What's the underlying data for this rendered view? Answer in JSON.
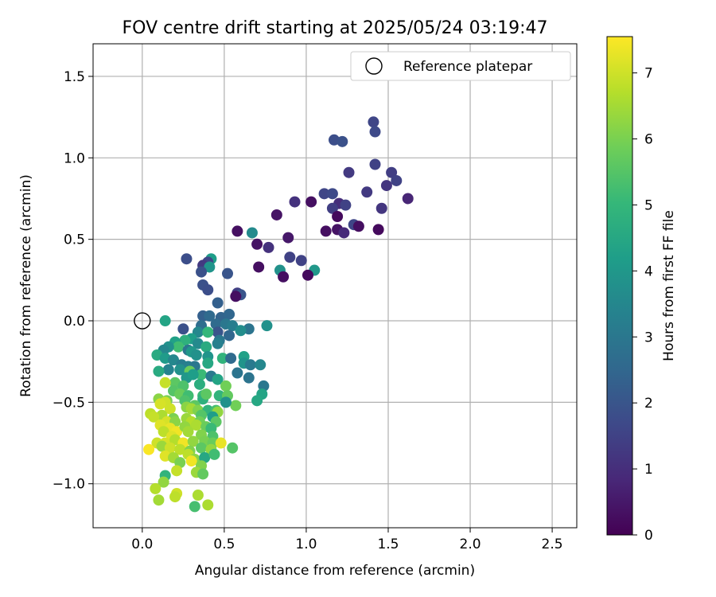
{
  "chart_data": {
    "type": "scatter",
    "title": "FOV centre drift starting at 2025/05/24 03:19:47",
    "xlabel": "Angular distance from reference (arcmin)",
    "ylabel": "Rotation from reference (arcmin)",
    "xlim": [
      -0.3,
      2.65
    ],
    "ylim": [
      -1.27,
      1.7
    ],
    "xticks": [
      0.0,
      0.5,
      1.0,
      1.5,
      2.0,
      2.5
    ],
    "xtick_labels": [
      "0.0",
      "0.5",
      "1.0",
      "1.5",
      "2.0",
      "2.5"
    ],
    "yticks": [
      -1.0,
      -0.5,
      0.0,
      0.5,
      1.0,
      1.5
    ],
    "ytick_labels": [
      "−1.0",
      "−0.5",
      "0.0",
      "0.5",
      "1.0",
      "1.5"
    ],
    "grid": true,
    "legend": {
      "position": "top-right",
      "label": "Reference platepar"
    },
    "reference_point": {
      "x": 0.0,
      "y": 0.0
    },
    "colorbar": {
      "label": "Hours from first FF file",
      "colormap": "viridis",
      "range": [
        0,
        7.55
      ],
      "ticks": [
        0,
        1,
        2,
        3,
        4,
        5,
        6,
        7
      ],
      "tick_labels": [
        "0",
        "1",
        "2",
        "3",
        "4",
        "5",
        "6",
        "7"
      ]
    },
    "points": [
      [
        1.41,
        1.22,
        1.6
      ],
      [
        1.42,
        1.16,
        1.7
      ],
      [
        1.17,
        1.11,
        1.8
      ],
      [
        1.22,
        1.1,
        1.9
      ],
      [
        1.42,
        0.96,
        1.5
      ],
      [
        1.26,
        0.91,
        1.3
      ],
      [
        1.52,
        0.91,
        1.4
      ],
      [
        1.55,
        0.86,
        1.5
      ],
      [
        1.49,
        0.83,
        1.2
      ],
      [
        1.11,
        0.78,
        1.6
      ],
      [
        1.16,
        0.78,
        1.7
      ],
      [
        1.37,
        0.79,
        1.3
      ],
      [
        1.62,
        0.75,
        0.8
      ],
      [
        0.93,
        0.73,
        1.1
      ],
      [
        1.03,
        0.73,
        0.3
      ],
      [
        1.2,
        0.72,
        1.0
      ],
      [
        1.24,
        0.71,
        1.5
      ],
      [
        1.16,
        0.69,
        1.4
      ],
      [
        1.46,
        0.69,
        1.2
      ],
      [
        0.82,
        0.65,
        0.4
      ],
      [
        1.19,
        0.64,
        0.2
      ],
      [
        1.29,
        0.59,
        1.6
      ],
      [
        1.32,
        0.58,
        0.3
      ],
      [
        1.19,
        0.56,
        0.4
      ],
      [
        1.44,
        0.56,
        0.2
      ],
      [
        0.58,
        0.55,
        0.3
      ],
      [
        1.12,
        0.55,
        0.3
      ],
      [
        1.23,
        0.54,
        0.9
      ],
      [
        0.67,
        0.54,
        3.6
      ],
      [
        0.89,
        0.51,
        0.5
      ],
      [
        0.7,
        0.47,
        0.4
      ],
      [
        0.77,
        0.45,
        1.1
      ],
      [
        0.9,
        0.39,
        1.5
      ],
      [
        0.27,
        0.38,
        1.8
      ],
      [
        0.42,
        0.38,
        4.2
      ],
      [
        0.97,
        0.37,
        1.5
      ],
      [
        0.4,
        0.36,
        1.6
      ],
      [
        0.37,
        0.34,
        1.3
      ],
      [
        0.71,
        0.33,
        0.3
      ],
      [
        1.05,
        0.31,
        4.0
      ],
      [
        0.84,
        0.31,
        3.8
      ],
      [
        0.41,
        0.33,
        3.9
      ],
      [
        0.36,
        0.3,
        1.9
      ],
      [
        0.52,
        0.29,
        2.0
      ],
      [
        1.01,
        0.28,
        0.2
      ],
      [
        0.86,
        0.27,
        0.3
      ],
      [
        0.37,
        0.22,
        1.9
      ],
      [
        0.4,
        0.19,
        1.8
      ],
      [
        0.58,
        0.17,
        1.4
      ],
      [
        0.6,
        0.16,
        2.0
      ],
      [
        0.57,
        0.15,
        0.3
      ],
      [
        0.46,
        0.11,
        2.3
      ],
      [
        0.37,
        0.03,
        2.3
      ],
      [
        0.41,
        0.03,
        2.6
      ],
      [
        0.48,
        0.02,
        2.4
      ],
      [
        0.53,
        0.04,
        2.5
      ],
      [
        0.45,
        -0.02,
        2.6
      ],
      [
        0.51,
        -0.02,
        3.0
      ],
      [
        0.55,
        -0.03,
        3.2
      ],
      [
        0.36,
        -0.03,
        2.7
      ],
      [
        0.25,
        -0.05,
        1.9
      ],
      [
        0.65,
        -0.05,
        2.9
      ],
      [
        0.76,
        -0.03,
        3.8
      ],
      [
        0.6,
        -0.06,
        3.7
      ],
      [
        0.14,
        0.0,
        4.4
      ],
      [
        0.46,
        -0.07,
        2.0
      ],
      [
        0.34,
        -0.07,
        3.5
      ],
      [
        0.53,
        -0.09,
        2.5
      ],
      [
        0.47,
        -0.12,
        3.0
      ],
      [
        0.4,
        -0.07,
        5.0
      ],
      [
        0.3,
        -0.11,
        4.2
      ],
      [
        0.26,
        -0.12,
        4.8
      ],
      [
        0.2,
        -0.13,
        4.3
      ],
      [
        0.22,
        -0.16,
        5.2
      ],
      [
        0.16,
        -0.16,
        3.8
      ],
      [
        0.13,
        -0.18,
        3.5
      ],
      [
        0.34,
        -0.14,
        3.6
      ],
      [
        0.28,
        -0.18,
        3.0
      ],
      [
        0.39,
        -0.16,
        4.6
      ],
      [
        0.46,
        -0.14,
        3.3
      ],
      [
        0.3,
        -0.19,
        4.0
      ],
      [
        0.33,
        -0.21,
        3.8
      ],
      [
        0.4,
        -0.22,
        3.9
      ],
      [
        0.09,
        -0.21,
        4.6
      ],
      [
        0.14,
        -0.23,
        4.1
      ],
      [
        0.19,
        -0.24,
        3.5
      ],
      [
        0.49,
        -0.23,
        4.9
      ],
      [
        0.54,
        -0.23,
        2.6
      ],
      [
        0.62,
        -0.22,
        4.3
      ],
      [
        0.24,
        -0.27,
        3.2
      ],
      [
        0.28,
        -0.28,
        3.3
      ],
      [
        0.32,
        -0.28,
        3.0
      ],
      [
        0.4,
        -0.26,
        4.5
      ],
      [
        0.62,
        -0.26,
        3.9
      ],
      [
        0.66,
        -0.27,
        3.1
      ],
      [
        0.72,
        -0.27,
        3.5
      ],
      [
        0.16,
        -0.3,
        3.4
      ],
      [
        0.1,
        -0.31,
        4.6
      ],
      [
        0.23,
        -0.3,
        3.8
      ],
      [
        0.29,
        -0.31,
        5.8
      ],
      [
        0.36,
        -0.33,
        5.1
      ],
      [
        0.42,
        -0.34,
        3.1
      ],
      [
        0.46,
        -0.36,
        4.4
      ],
      [
        0.58,
        -0.32,
        2.9
      ],
      [
        0.65,
        -0.35,
        2.9
      ],
      [
        0.27,
        -0.35,
        4.0
      ],
      [
        0.31,
        -0.33,
        4.2
      ],
      [
        0.2,
        -0.38,
        5.6
      ],
      [
        0.14,
        -0.38,
        6.9
      ],
      [
        0.25,
        -0.4,
        5.4
      ],
      [
        0.35,
        -0.39,
        4.7
      ],
      [
        0.51,
        -0.4,
        5.9
      ],
      [
        0.74,
        -0.4,
        3.0
      ],
      [
        0.73,
        -0.45,
        4.4
      ],
      [
        0.19,
        -0.43,
        5.5
      ],
      [
        0.23,
        -0.45,
        5.8
      ],
      [
        0.28,
        -0.46,
        5.2
      ],
      [
        0.37,
        -0.46,
        5.1
      ],
      [
        0.47,
        -0.46,
        4.9
      ],
      [
        0.52,
        -0.46,
        5.7
      ],
      [
        0.1,
        -0.48,
        6.2
      ],
      [
        0.15,
        -0.49,
        6.0
      ],
      [
        0.26,
        -0.49,
        5.4
      ],
      [
        0.37,
        -0.48,
        4.8
      ],
      [
        0.39,
        -0.45,
        5.6
      ],
      [
        0.7,
        -0.49,
        4.5
      ],
      [
        0.57,
        -0.52,
        5.9
      ],
      [
        0.14,
        -0.5,
        7.0
      ],
      [
        0.11,
        -0.51,
        7.1
      ],
      [
        0.32,
        -0.52,
        5.6
      ],
      [
        0.27,
        -0.53,
        6.2
      ],
      [
        0.3,
        -0.54,
        6.5
      ],
      [
        0.34,
        -0.55,
        6.1
      ],
      [
        0.17,
        -0.54,
        7.0
      ],
      [
        0.4,
        -0.55,
        4.9
      ],
      [
        0.45,
        -0.55,
        5.3
      ],
      [
        0.46,
        -0.56,
        6.3
      ],
      [
        0.51,
        -0.5,
        3.8
      ],
      [
        0.05,
        -0.57,
        6.8
      ],
      [
        0.12,
        -0.58,
        6.6
      ],
      [
        0.19,
        -0.6,
        6.0
      ],
      [
        0.27,
        -0.6,
        6.4
      ],
      [
        0.36,
        -0.58,
        5.5
      ],
      [
        0.43,
        -0.59,
        4.2
      ],
      [
        0.07,
        -0.59,
        6.9
      ],
      [
        0.15,
        -0.62,
        7.1
      ],
      [
        0.2,
        -0.62,
        6.2
      ],
      [
        0.3,
        -0.62,
        6.7
      ],
      [
        0.35,
        -0.62,
        5.9
      ],
      [
        0.45,
        -0.62,
        5.6
      ],
      [
        0.11,
        -0.64,
        7.2
      ],
      [
        0.17,
        -0.66,
        7.3
      ],
      [
        0.21,
        -0.68,
        7.4
      ],
      [
        0.26,
        -0.65,
        6.3
      ],
      [
        0.33,
        -0.64,
        6.6
      ],
      [
        0.39,
        -0.65,
        5.8
      ],
      [
        0.42,
        -0.66,
        5.1
      ],
      [
        0.13,
        -0.68,
        6.8
      ],
      [
        0.18,
        -0.71,
        7.2
      ],
      [
        0.28,
        -0.68,
        6.5
      ],
      [
        0.36,
        -0.7,
        6.1
      ],
      [
        0.43,
        -0.71,
        5.4
      ],
      [
        0.09,
        -0.75,
        7.0
      ],
      [
        0.14,
        -0.75,
        7.1
      ],
      [
        0.2,
        -0.73,
        6.7
      ],
      [
        0.25,
        -0.75,
        7.4
      ],
      [
        0.31,
        -0.74,
        6.3
      ],
      [
        0.38,
        -0.74,
        6.0
      ],
      [
        0.43,
        -0.75,
        5.8
      ],
      [
        0.48,
        -0.75,
        7.3
      ],
      [
        0.55,
        -0.78,
        5.5
      ],
      [
        0.12,
        -0.77,
        6.4
      ],
      [
        0.17,
        -0.78,
        7.0
      ],
      [
        0.23,
        -0.79,
        6.8
      ],
      [
        0.29,
        -0.8,
        6.1
      ],
      [
        0.36,
        -0.78,
        5.6
      ],
      [
        0.42,
        -0.79,
        6.3
      ],
      [
        0.04,
        -0.79,
        7.5
      ],
      [
        0.14,
        -0.83,
        7.2
      ],
      [
        0.19,
        -0.84,
        6.5
      ],
      [
        0.28,
        -0.82,
        6.8
      ],
      [
        0.32,
        -0.85,
        6.2
      ],
      [
        0.38,
        -0.84,
        4.5
      ],
      [
        0.44,
        -0.82,
        5.2
      ],
      [
        0.23,
        -0.87,
        6.0
      ],
      [
        0.3,
        -0.86,
        7.4
      ],
      [
        0.36,
        -0.89,
        6.1
      ],
      [
        0.21,
        -0.92,
        6.9
      ],
      [
        0.33,
        -0.93,
        6.4
      ],
      [
        0.37,
        -0.94,
        5.7
      ],
      [
        0.14,
        -0.95,
        4.9
      ],
      [
        0.13,
        -0.99,
        6.3
      ],
      [
        0.08,
        -1.03,
        6.7
      ],
      [
        0.21,
        -1.06,
        7.0
      ],
      [
        0.2,
        -1.08,
        6.8
      ],
      [
        0.34,
        -1.07,
        6.6
      ],
      [
        0.1,
        -1.1,
        6.5
      ],
      [
        0.32,
        -1.14,
        5.3
      ],
      [
        0.4,
        -1.13,
        6.6
      ]
    ]
  }
}
